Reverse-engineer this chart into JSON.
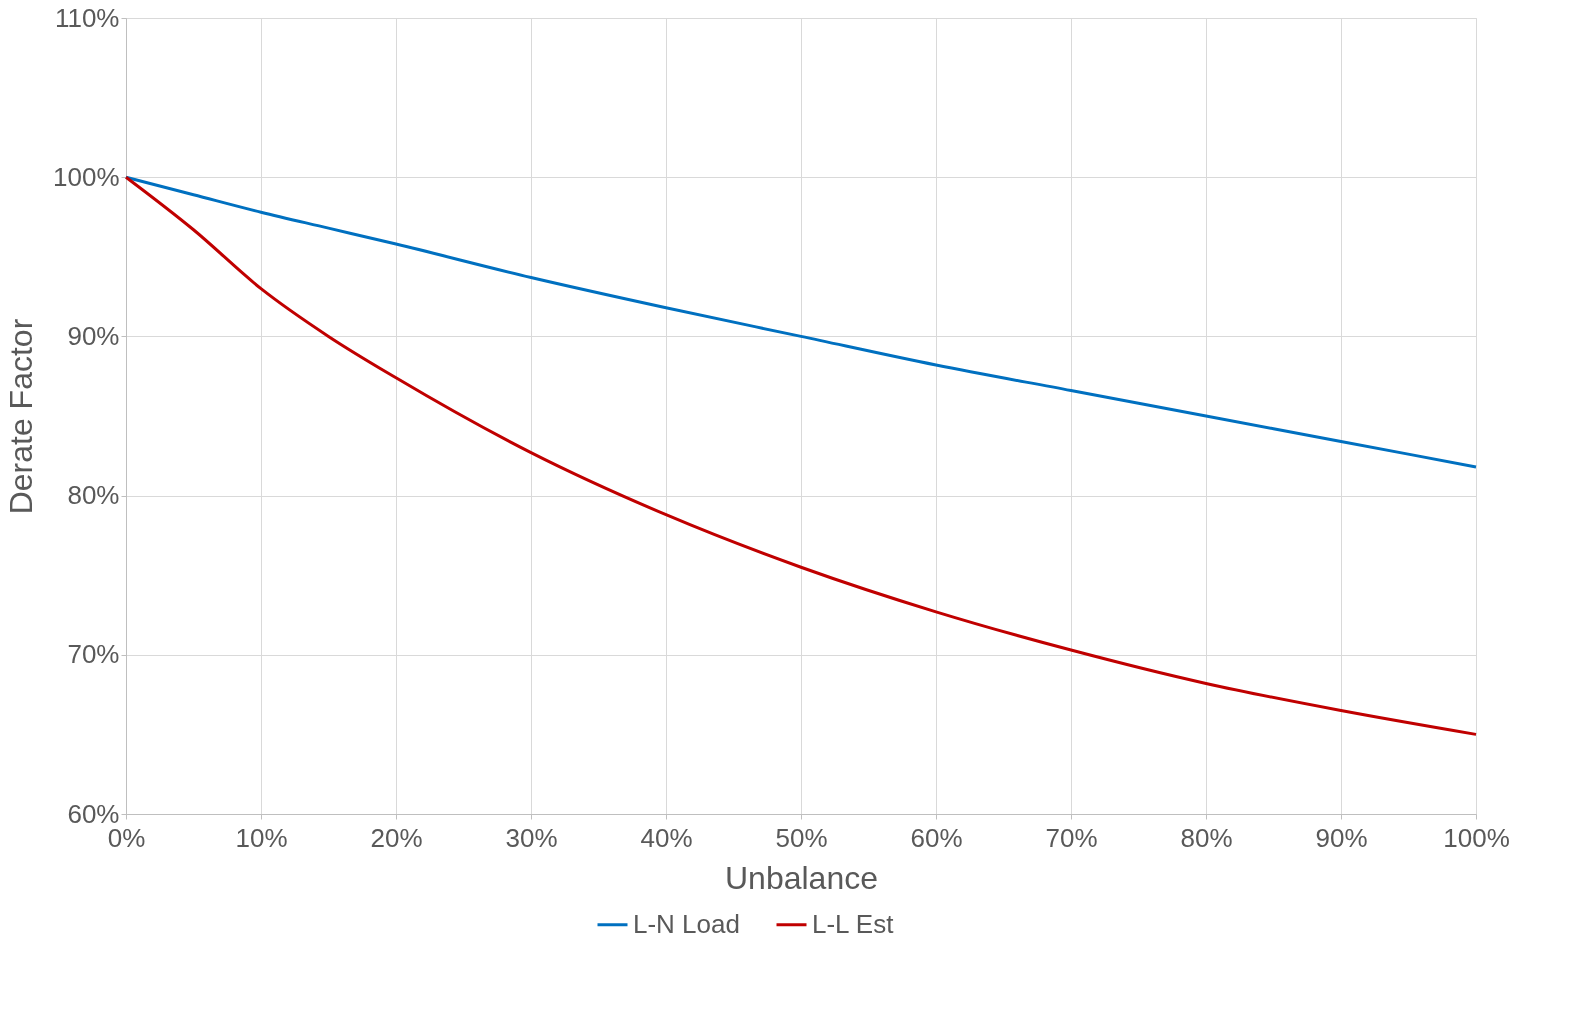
{
  "chart_data": {
    "type": "line",
    "xlabel": "Unbalance",
    "ylabel": "Derate Factor",
    "x": [
      0,
      5,
      10,
      15,
      20,
      30,
      40,
      50,
      60,
      70,
      80,
      90,
      100
    ],
    "series": [
      {
        "name": "L-N Load",
        "color": "#0070c0",
        "values": [
          100,
          98.9,
          97.8,
          96.8,
          95.8,
          93.7,
          91.8,
          90.0,
          88.2,
          86.6,
          85.0,
          83.4,
          81.8
        ]
      },
      {
        "name": "L-L Est",
        "color": "#c00000",
        "values": [
          100,
          96.7,
          93.0,
          90.0,
          87.4,
          82.7,
          78.8,
          75.5,
          72.7,
          70.3,
          68.2,
          66.5,
          65.0
        ]
      }
    ],
    "xlim": [
      0,
      100
    ],
    "xticks": [
      {
        "value": 0,
        "label": "0%"
      },
      {
        "value": 10,
        "label": "10%"
      },
      {
        "value": 20,
        "label": "20%"
      },
      {
        "value": 30,
        "label": "30%"
      },
      {
        "value": 40,
        "label": "40%"
      },
      {
        "value": 50,
        "label": "50%"
      },
      {
        "value": 60,
        "label": "60%"
      },
      {
        "value": 70,
        "label": "70%"
      },
      {
        "value": 80,
        "label": "80%"
      },
      {
        "value": 90,
        "label": "90%"
      },
      {
        "value": 100,
        "label": "100%"
      }
    ],
    "ylim": [
      60,
      110
    ],
    "yticks": [
      {
        "value": 60,
        "label": "60%"
      },
      {
        "value": 70,
        "label": "70%"
      },
      {
        "value": 80,
        "label": "80%"
      },
      {
        "value": 90,
        "label": "90%"
      },
      {
        "value": 100,
        "label": "100%"
      },
      {
        "value": 110,
        "label": "110%"
      }
    ],
    "grid": true,
    "legend": "bottom",
    "marker": "none",
    "line_style": "solid"
  }
}
